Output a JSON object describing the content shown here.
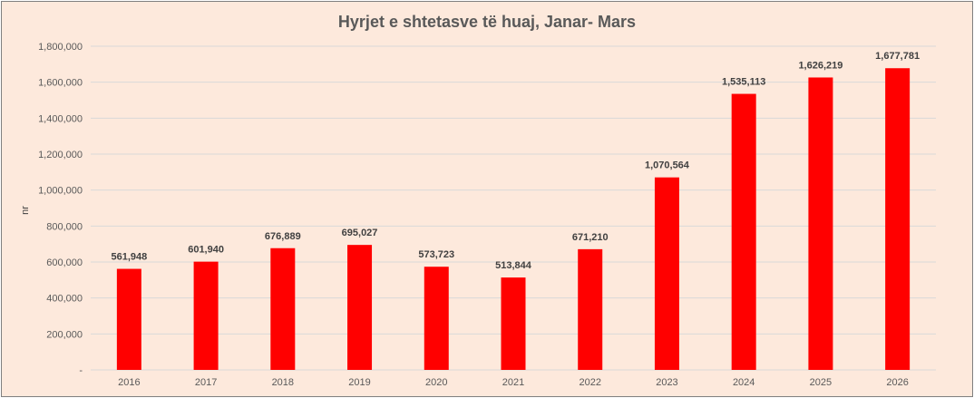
{
  "chart_data": {
    "type": "bar",
    "title": "Hyrjet e shtetasve të huaj, Janar- Mars",
    "xlabel": "",
    "ylabel": "nr",
    "categories": [
      "2016",
      "2017",
      "2018",
      "2019",
      "2020",
      "2021",
      "2022",
      "2023",
      "2024",
      "2025",
      "2026"
    ],
    "values": [
      561948,
      601940,
      676889,
      695027,
      573723,
      513844,
      671210,
      1070564,
      1535113,
      1626219,
      1677781
    ],
    "data_labels": [
      "561,948",
      "601,940",
      "676,889",
      "695,027",
      "573,723",
      "513,844",
      "671,210",
      "1,070,564",
      "1,535,113",
      "1,626,219",
      "1,677,781"
    ],
    "ylim": [
      0,
      1800000
    ],
    "yticks": [
      0,
      200000,
      400000,
      600000,
      800000,
      1000000,
      1200000,
      1400000,
      1600000,
      1800000
    ],
    "ytick_labels": [
      "-",
      "200,000",
      "400,000",
      "600,000",
      "800,000",
      "1,000,000",
      "1,200,000",
      "1,400,000",
      "1,600,000",
      "1,800,000"
    ],
    "grid": true,
    "bar_color": "#ff0000",
    "grid_color": "#d9d9d9",
    "background_color": "#fde9dc"
  }
}
